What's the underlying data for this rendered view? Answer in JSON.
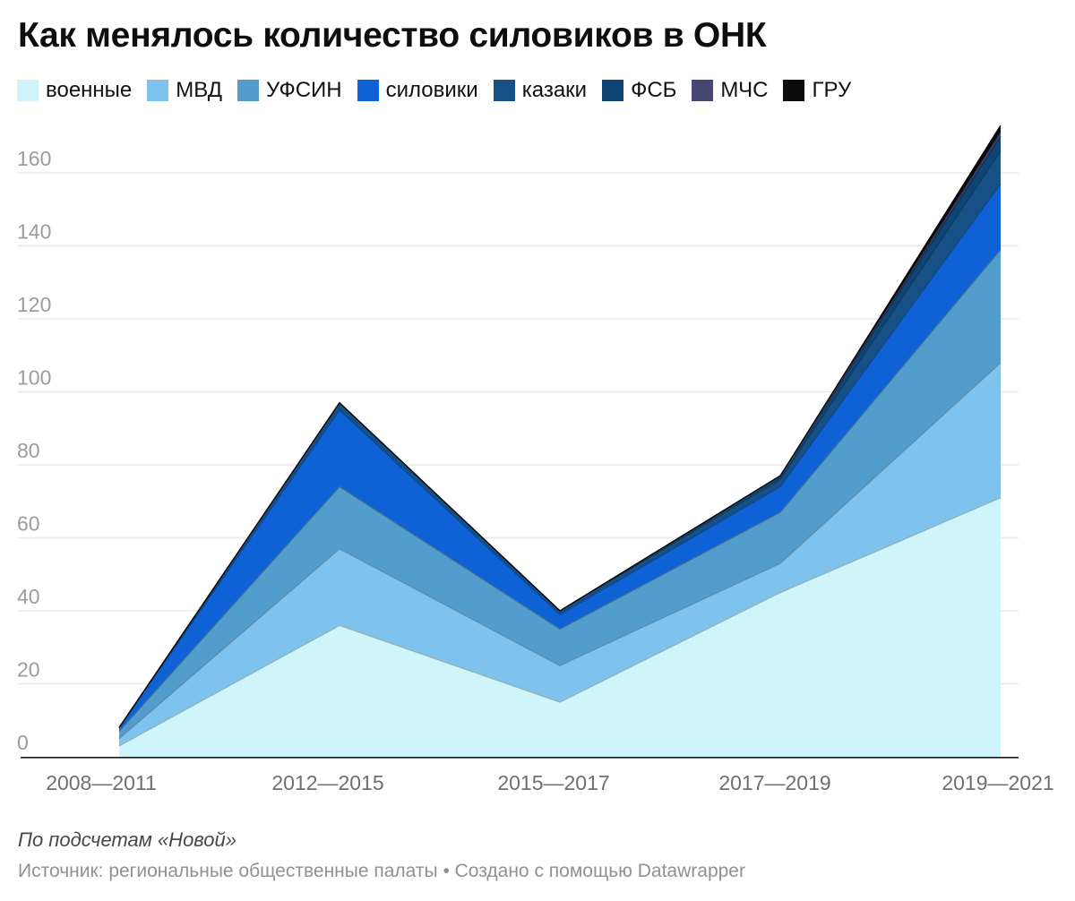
{
  "chart_data": {
    "type": "area",
    "stacked": true,
    "title": "Как менялось количество силовиков в ОНК",
    "xlabel": "",
    "ylabel": "",
    "categories": [
      "2008—2011",
      "2012—2015",
      "2015—2017",
      "2017—2019",
      "2019—2021"
    ],
    "series": [
      {
        "name": "военные",
        "color": "#CFF4F9",
        "values": [
          3,
          36,
          15,
          45,
          71
        ]
      },
      {
        "name": "МВД",
        "color": "#7EC3EE",
        "values": [
          2,
          21,
          10,
          8,
          37
        ]
      },
      {
        "name": "УФСИН",
        "color": "#539DCC",
        "values": [
          2,
          17,
          10,
          14,
          31
        ]
      },
      {
        "name": "силовики",
        "color": "#0E62D5",
        "values": [
          1,
          21,
          4,
          7,
          18
        ]
      },
      {
        "name": "казаки",
        "color": "#175085",
        "values": [
          0,
          2,
          1,
          2,
          9
        ]
      },
      {
        "name": "ФСБ",
        "color": "#0E4577",
        "values": [
          0,
          0,
          0,
          1,
          4
        ]
      },
      {
        "name": "МЧС",
        "color": "#474673",
        "values": [
          0,
          0,
          0,
          0,
          1
        ]
      },
      {
        "name": "ГРУ",
        "color": "#0B0B0B",
        "values": [
          0,
          0,
          0,
          0,
          2
        ]
      }
    ],
    "totals": [
      8,
      97,
      40,
      77,
      173
    ],
    "yticks": [
      0,
      20,
      40,
      60,
      80,
      100,
      120,
      140,
      160
    ],
    "ylim": [
      0,
      175
    ],
    "grid": true,
    "legend_position": "top"
  },
  "footer": {
    "byline": "По подсчетам «Новой»",
    "source": "Источник: региональные общественные палаты • Создано с помощью Datawrapper"
  }
}
